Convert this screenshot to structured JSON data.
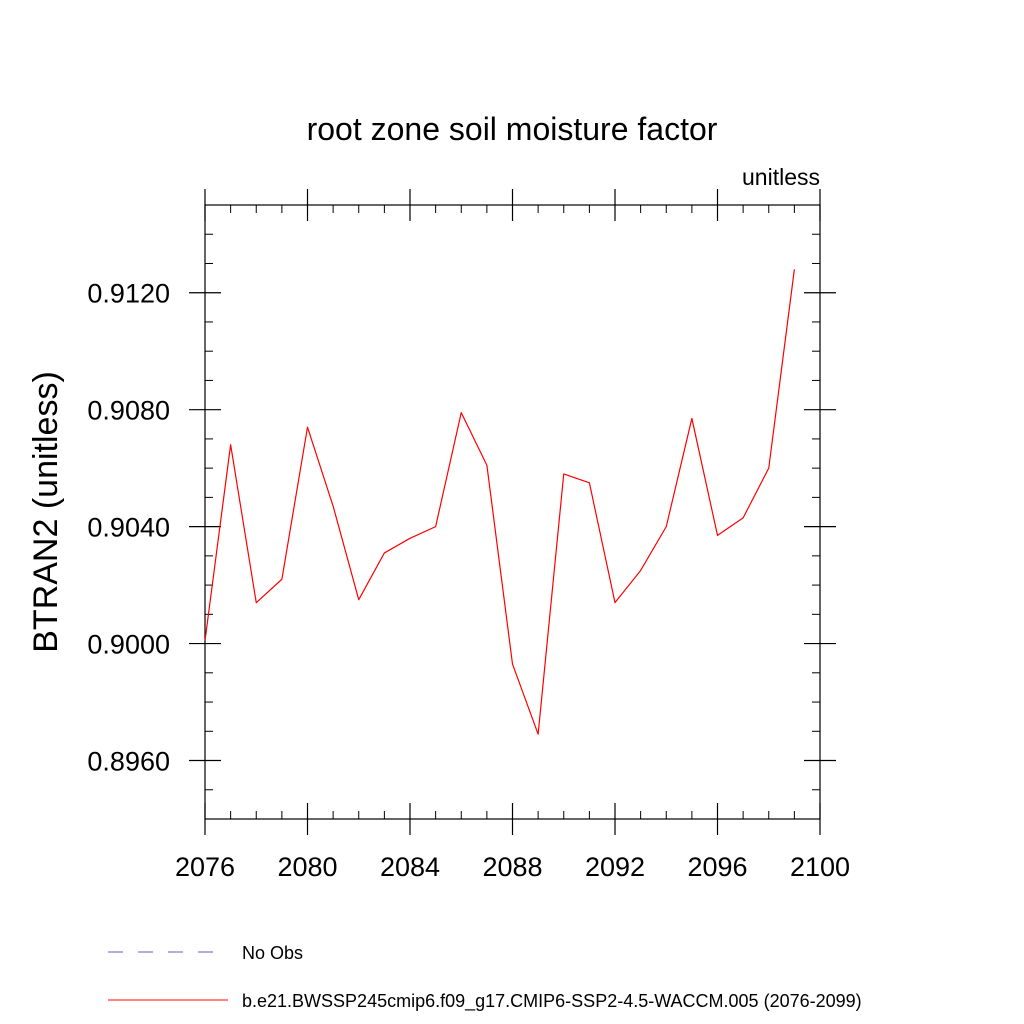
{
  "chart_data": {
    "type": "line",
    "title": "root zone soil moisture factor",
    "units_label": "unitless",
    "ylabel": "BTRAN2  (unitless)",
    "xlabel": "",
    "xlim": [
      2076,
      2100
    ],
    "ylim": [
      0.894,
      0.915
    ],
    "x_major_ticks": [
      2076,
      2080,
      2084,
      2088,
      2092,
      2096,
      2100
    ],
    "x_tick_labels": [
      "2076",
      "2080",
      "2084",
      "2088",
      "2092",
      "2096",
      "2100"
    ],
    "x_minor_step": 1,
    "y_major_ticks": [
      0.896,
      0.9,
      0.904,
      0.908,
      0.912
    ],
    "y_tick_labels": [
      "0.8960",
      "0.9000",
      "0.9040",
      "0.9080",
      "0.9120"
    ],
    "y_minor_step": 0.001,
    "grid": false,
    "legend_position": "bottom",
    "series": [
      {
        "name": "b.e21.BWSSP245cmip6.f09_g17.CMIP6-SSP2-4.5-WACCM.005 (2076-2099)",
        "color": "#ff0000",
        "style": "solid",
        "x": [
          2076,
          2077,
          2078,
          2079,
          2080,
          2081,
          2082,
          2083,
          2084,
          2085,
          2086,
          2087,
          2088,
          2089,
          2090,
          2091,
          2092,
          2093,
          2094,
          2095,
          2096,
          2097,
          2098,
          2099
        ],
        "values": [
          0.9001,
          0.9068,
          0.9014,
          0.9022,
          0.9074,
          0.9047,
          0.9015,
          0.9031,
          0.9036,
          0.904,
          0.9079,
          0.9061,
          0.8993,
          0.8969,
          0.9058,
          0.9055,
          0.9014,
          0.9025,
          0.904,
          0.9077,
          0.9037,
          0.9043,
          0.906,
          0.9128
        ]
      }
    ],
    "legend": [
      {
        "label": "No Obs",
        "color": "#6a5acd",
        "style": "dashed"
      },
      {
        "label": "b.e21.BWSSP245cmip6.f09_g17.CMIP6-SSP2-4.5-WACCM.005 (2076-2099)",
        "color": "#ff0000",
        "style": "solid"
      }
    ]
  }
}
